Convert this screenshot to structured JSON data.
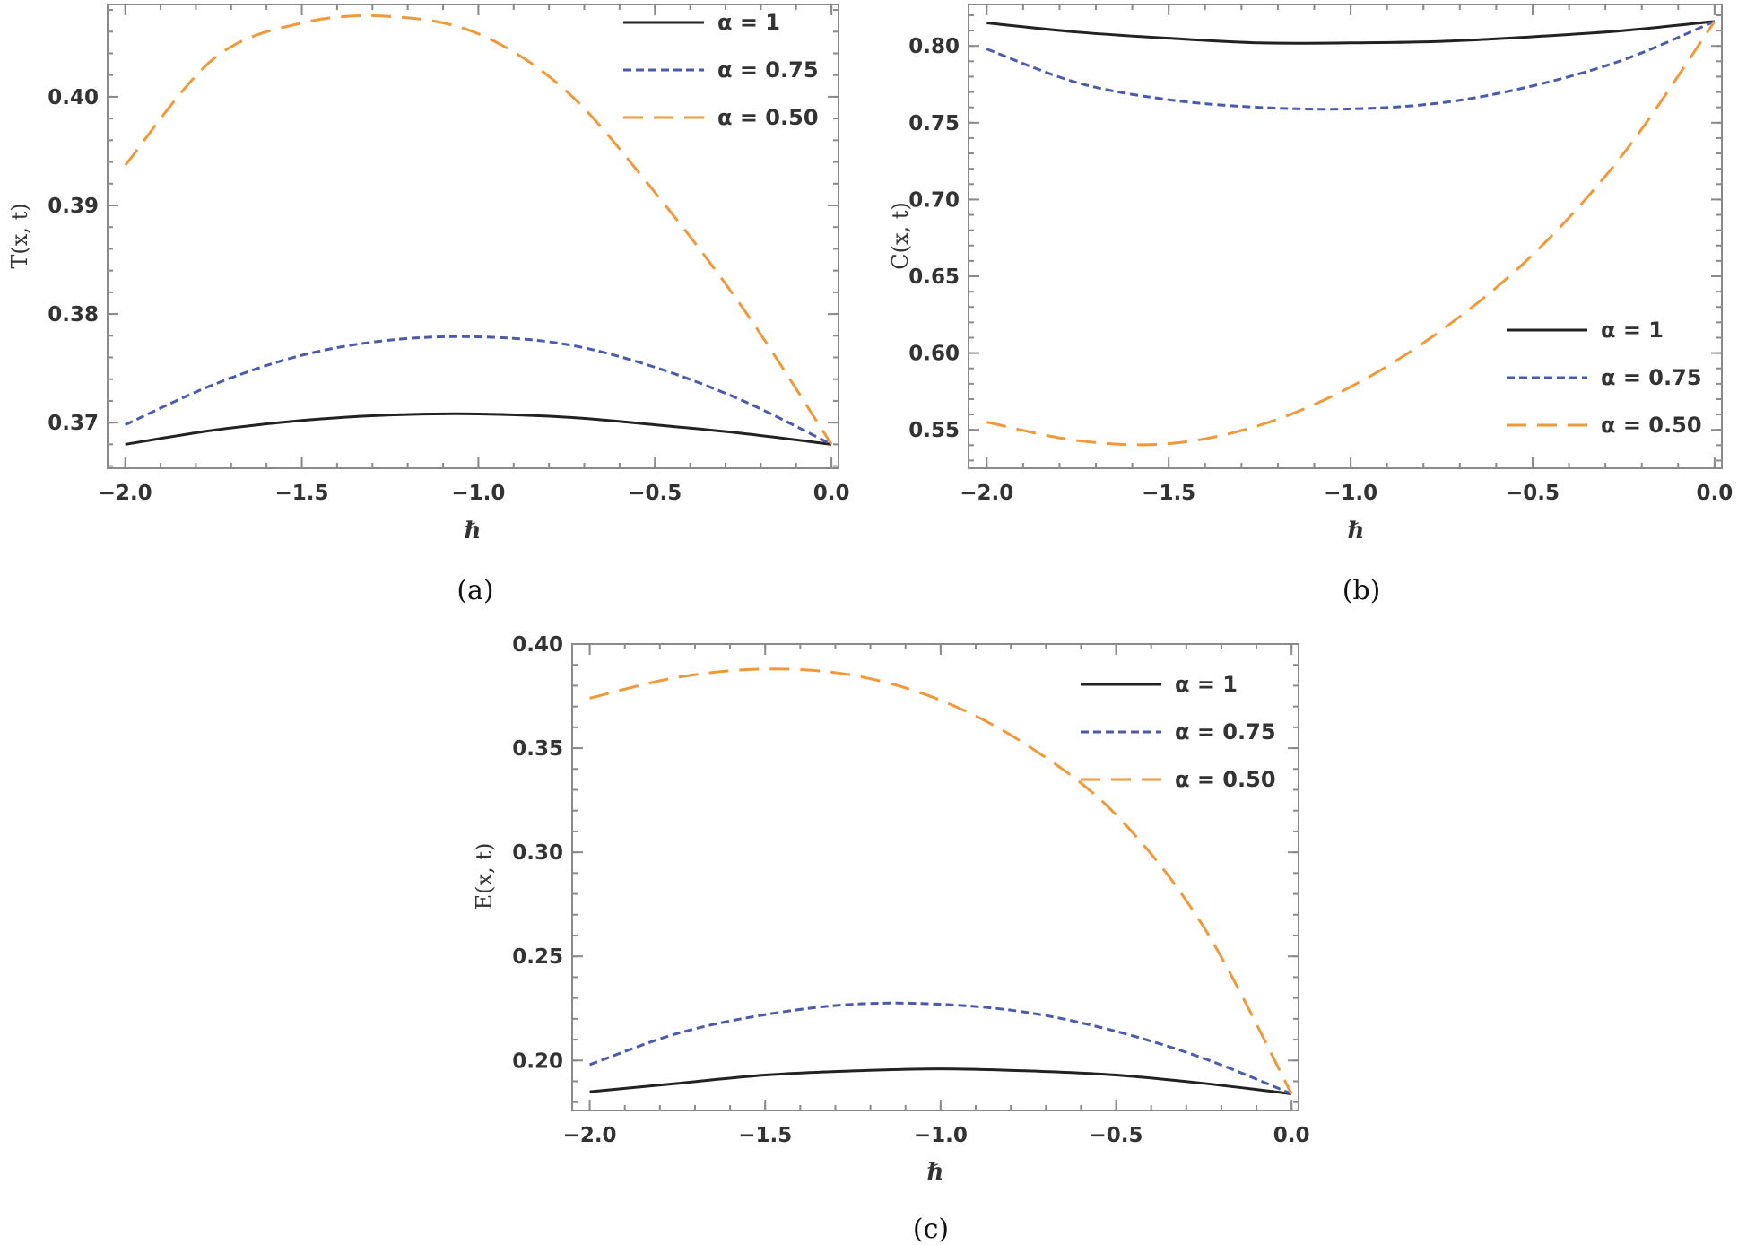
{
  "chart_data": [
    {
      "type": "line",
      "panel": "a",
      "caption": "(a)",
      "xlabel": "ℏ",
      "ylabel": "T(x, t)",
      "xlim": [
        -2.05,
        0.02
      ],
      "ylim": [
        0.3658,
        0.4085
      ],
      "xticks": [
        -2.0,
        -1.5,
        -1.0,
        -0.5,
        0.0
      ],
      "xtick_labels": [
        "−2.0",
        "−1.5",
        "−1.0",
        "−0.5",
        "0.0"
      ],
      "yticks": [
        0.37,
        0.38,
        0.39,
        0.4
      ],
      "ytick_labels": [
        "0.37",
        "0.38",
        "0.39",
        "0.40"
      ],
      "legend_position": "top-right",
      "x": [
        -2.0,
        -1.75,
        -1.5,
        -1.25,
        -1.0,
        -0.75,
        -0.5,
        -0.25,
        0.0
      ],
      "series": [
        {
          "name": "α = 1",
          "style": "solid",
          "color": "#222222",
          "values": [
            0.368,
            0.3693,
            0.3702,
            0.3707,
            0.3708,
            0.3705,
            0.3698,
            0.369,
            0.368
          ]
        },
        {
          "name": "α = 0.75",
          "style": "dotted-dash",
          "color": "#4a5aae",
          "values": [
            0.3698,
            0.3735,
            0.3762,
            0.3776,
            0.3779,
            0.3772,
            0.3751,
            0.372,
            0.368
          ]
        },
        {
          "name": "α = 0.50",
          "style": "long-dash",
          "color": "#f0993a",
          "values": [
            0.3937,
            0.4035,
            0.4068,
            0.4074,
            0.4058,
            0.4005,
            0.3912,
            0.3805,
            0.368
          ]
        }
      ]
    },
    {
      "type": "line",
      "panel": "b",
      "caption": "(b)",
      "xlabel": "ℏ",
      "ylabel": "C(x, t)",
      "xlim": [
        -2.05,
        0.02
      ],
      "ylim": [
        0.525,
        0.827
      ],
      "xticks": [
        -2.0,
        -1.5,
        -1.0,
        -0.5,
        0.0
      ],
      "xtick_labels": [
        "−2.0",
        "−1.5",
        "−1.0",
        "−0.5",
        "0.0"
      ],
      "yticks": [
        0.55,
        0.6,
        0.65,
        0.7,
        0.75,
        0.8
      ],
      "ytick_labels": [
        "0.55",
        "0.60",
        "0.65",
        "0.70",
        "0.75",
        "0.80"
      ],
      "legend_position": "bottom-right",
      "x": [
        -2.0,
        -1.75,
        -1.5,
        -1.25,
        -1.0,
        -0.75,
        -0.5,
        -0.25,
        0.0
      ],
      "series": [
        {
          "name": "α = 1",
          "style": "solid",
          "color": "#222222",
          "values": [
            0.815,
            0.809,
            0.805,
            0.802,
            0.802,
            0.803,
            0.806,
            0.81,
            0.816
          ]
        },
        {
          "name": "α = 0.75",
          "style": "dotted-dash",
          "color": "#4a5aae",
          "values": [
            0.798,
            0.776,
            0.765,
            0.76,
            0.759,
            0.763,
            0.774,
            0.791,
            0.816
          ]
        },
        {
          "name": "α = 0.50",
          "style": "long-dash",
          "color": "#f0993a",
          "values": [
            0.555,
            0.543,
            0.541,
            0.553,
            0.578,
            0.615,
            0.664,
            0.73,
            0.816
          ]
        }
      ]
    },
    {
      "type": "line",
      "panel": "c",
      "caption": "(c)",
      "xlabel": "ℏ",
      "ylabel": "E(x, t)",
      "xlim": [
        -2.05,
        0.02
      ],
      "ylim": [
        0.176,
        0.4
      ],
      "xticks": [
        -2.0,
        -1.5,
        -1.0,
        -0.5,
        0.0
      ],
      "xtick_labels": [
        "−2.0",
        "−1.5",
        "−1.0",
        "−0.5",
        "0.0"
      ],
      "yticks": [
        0.2,
        0.25,
        0.3,
        0.35,
        0.4
      ],
      "ytick_labels": [
        "0.20",
        "0.25",
        "0.30",
        "0.35",
        "0.40"
      ],
      "legend_position": "top-right",
      "x": [
        -2.0,
        -1.75,
        -1.5,
        -1.25,
        -1.0,
        -0.75,
        -0.5,
        -0.25,
        0.0
      ],
      "series": [
        {
          "name": "α = 1",
          "style": "solid",
          "color": "#222222",
          "values": [
            0.185,
            0.189,
            0.193,
            0.195,
            0.196,
            0.195,
            0.193,
            0.189,
            0.184
          ]
        },
        {
          "name": "α = 0.75",
          "style": "dotted-dash",
          "color": "#4a5aae",
          "values": [
            0.198,
            0.213,
            0.222,
            0.227,
            0.227,
            0.223,
            0.214,
            0.201,
            0.184
          ]
        },
        {
          "name": "α = 0.50",
          "style": "long-dash",
          "color": "#f0993a",
          "values": [
            0.374,
            0.384,
            0.388,
            0.385,
            0.373,
            0.351,
            0.318,
            0.264,
            0.184
          ]
        }
      ]
    }
  ]
}
